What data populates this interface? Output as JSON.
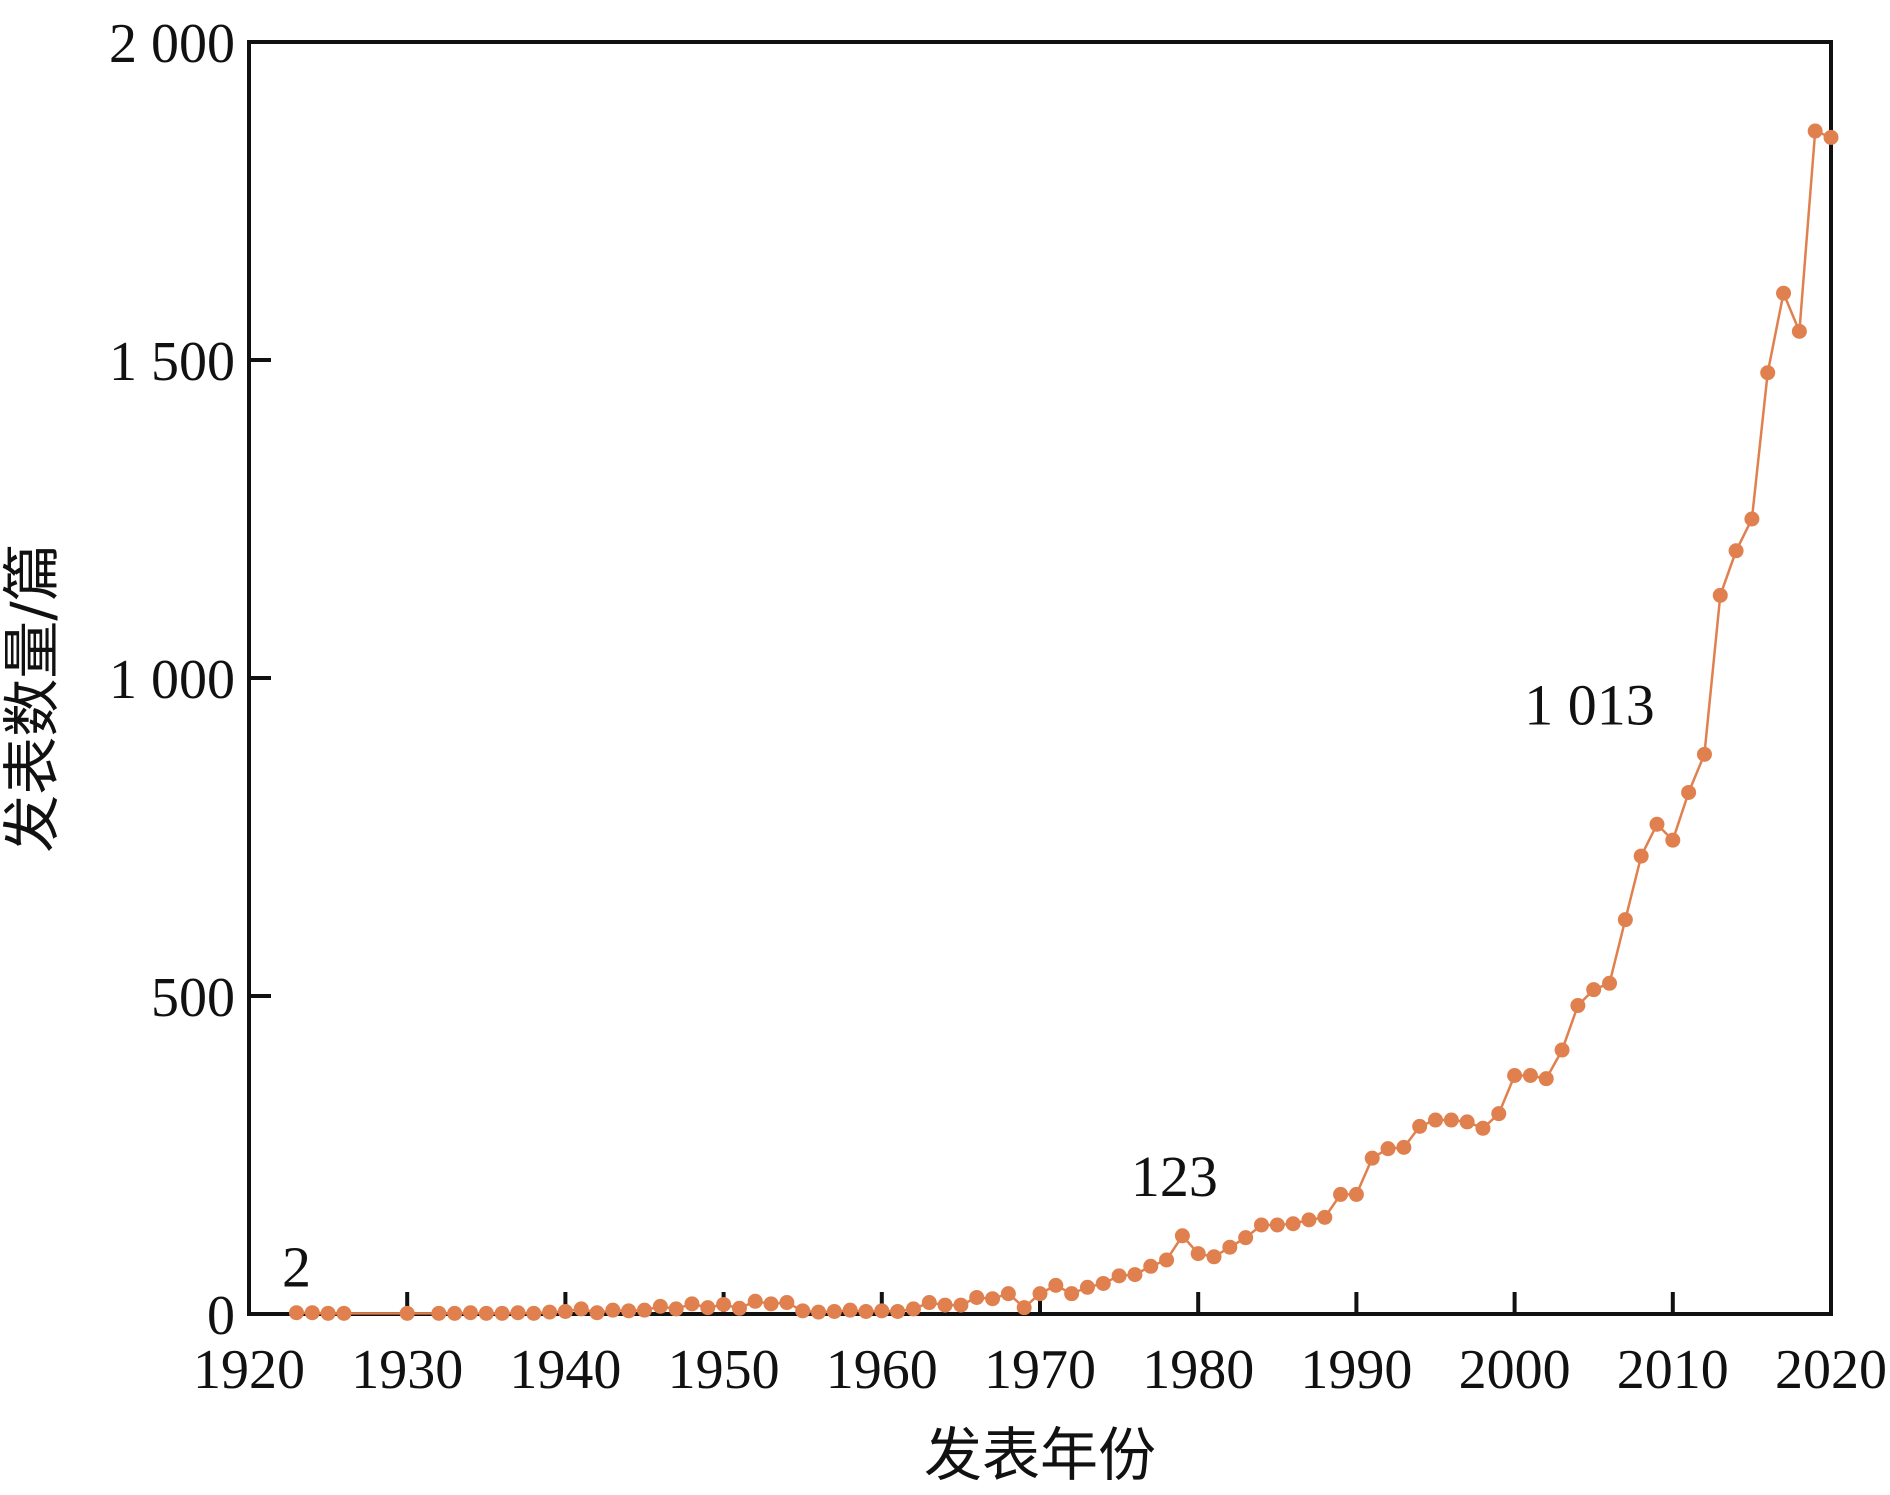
{
  "colors": {
    "series": "#E0804F",
    "axis": "#111111"
  },
  "chart_data": {
    "type": "line",
    "xlabel": "发表年份",
    "ylabel": "发表数量/篇",
    "xlim": [
      1920,
      2020
    ],
    "ylim": [
      0,
      2000
    ],
    "x_ticks": [
      1920,
      1930,
      1940,
      1950,
      1960,
      1970,
      1980,
      1990,
      2000,
      2010,
      2020
    ],
    "x_tick_labels": [
      "1920",
      "1930",
      "1940",
      "1950",
      "1960",
      "1970",
      "1980",
      "1990",
      "2000",
      "2010",
      "2020"
    ],
    "y_ticks": [
      0,
      500,
      1000,
      1500,
      2000
    ],
    "y_tick_labels": [
      "0",
      "500",
      "1 000",
      "1 500",
      "2 000"
    ],
    "grid": false,
    "legend": "none",
    "series": [
      {
        "marker": "circle",
        "points": [
          [
            1923,
            2
          ],
          [
            1924,
            2
          ],
          [
            1925,
            1
          ],
          [
            1926,
            1
          ],
          [
            1930,
            1
          ],
          [
            1932,
            1
          ],
          [
            1933,
            1
          ],
          [
            1934,
            2
          ],
          [
            1935,
            1
          ],
          [
            1936,
            1
          ],
          [
            1937,
            2
          ],
          [
            1938,
            1
          ],
          [
            1939,
            3
          ],
          [
            1940,
            4
          ],
          [
            1941,
            8
          ],
          [
            1942,
            2
          ],
          [
            1943,
            6
          ],
          [
            1944,
            5
          ],
          [
            1945,
            6
          ],
          [
            1946,
            12
          ],
          [
            1947,
            8
          ],
          [
            1948,
            16
          ],
          [
            1949,
            10
          ],
          [
            1950,
            15
          ],
          [
            1951,
            9
          ],
          [
            1952,
            20
          ],
          [
            1953,
            16
          ],
          [
            1954,
            18
          ],
          [
            1955,
            5
          ],
          [
            1956,
            3
          ],
          [
            1957,
            4
          ],
          [
            1958,
            6
          ],
          [
            1959,
            4
          ],
          [
            1960,
            5
          ],
          [
            1961,
            4
          ],
          [
            1962,
            8
          ],
          [
            1963,
            18
          ],
          [
            1964,
            14
          ],
          [
            1965,
            14
          ],
          [
            1966,
            26
          ],
          [
            1967,
            24
          ],
          [
            1968,
            32
          ],
          [
            1969,
            10
          ],
          [
            1970,
            32
          ],
          [
            1971,
            45
          ],
          [
            1972,
            32
          ],
          [
            1973,
            42
          ],
          [
            1974,
            48
          ],
          [
            1975,
            60
          ],
          [
            1976,
            62
          ],
          [
            1977,
            75
          ],
          [
            1978,
            85
          ],
          [
            1979,
            123
          ],
          [
            1980,
            95
          ],
          [
            1981,
            90
          ],
          [
            1982,
            105
          ],
          [
            1983,
            120
          ],
          [
            1984,
            140
          ],
          [
            1985,
            140
          ],
          [
            1986,
            142
          ],
          [
            1987,
            148
          ],
          [
            1988,
            152
          ],
          [
            1989,
            188
          ],
          [
            1990,
            188
          ],
          [
            1991,
            245
          ],
          [
            1992,
            260
          ],
          [
            1993,
            262
          ],
          [
            1994,
            295
          ],
          [
            1995,
            305
          ],
          [
            1996,
            305
          ],
          [
            1997,
            302
          ],
          [
            1998,
            292
          ],
          [
            1999,
            315
          ],
          [
            2000,
            375
          ],
          [
            2001,
            375
          ],
          [
            2002,
            370
          ],
          [
            2003,
            415
          ],
          [
            2004,
            485
          ],
          [
            2005,
            510
          ],
          [
            2006,
            520
          ],
          [
            2007,
            620
          ],
          [
            2008,
            720
          ],
          [
            2009,
            770
          ],
          [
            2010,
            745
          ],
          [
            2011,
            820
          ],
          [
            2012,
            880
          ],
          [
            2013,
            1130
          ],
          [
            2014,
            1200
          ],
          [
            2015,
            1250
          ],
          [
            2016,
            1480
          ],
          [
            2017,
            1605
          ],
          [
            2018,
            1545
          ],
          [
            2019,
            1860
          ],
          [
            2020,
            1850
          ]
        ]
      }
    ],
    "annotations": [
      {
        "text": "2",
        "x": 1923,
        "y": 2
      },
      {
        "text": "123",
        "x": 1979,
        "y": 123
      },
      {
        "text": "1 013",
        "x": 2006,
        "y": 880
      }
    ]
  }
}
